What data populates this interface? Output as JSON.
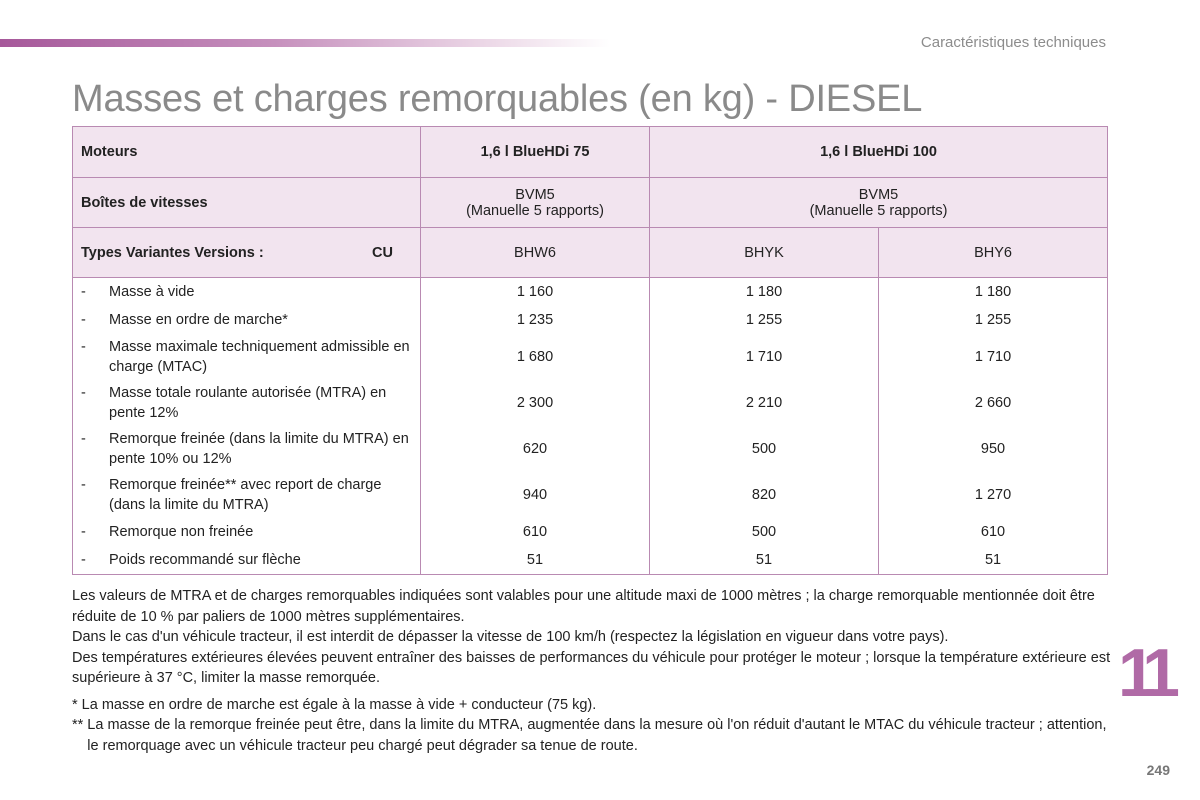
{
  "header": {
    "section": "Caractéristiques techniques"
  },
  "title": "Masses et charges remorquables (en kg) - DIESEL",
  "table": {
    "engines_label": "Moteurs",
    "engines": [
      "1,6 l BlueHDi 75",
      "1,6 l BlueHDi 100"
    ],
    "gearbox_label": "Boîtes de vitesses",
    "gearbox": [
      {
        "line1": "BVM5",
        "line2": "(Manuelle 5 rapports)"
      },
      {
        "line1": "BVM5",
        "line2": "(Manuelle 5 rapports)"
      }
    ],
    "types_label": "Types Variantes Versions :",
    "types_suffix": "CU",
    "types": [
      "BHW6",
      "BHYK",
      "BHY6"
    ],
    "rows": [
      {
        "dash": "-",
        "label": "Masse à vide",
        "values": [
          "1 160",
          "1 180",
          "1 180"
        ]
      },
      {
        "dash": "-",
        "label": "Masse en ordre de marche*",
        "values": [
          "1 235",
          "1 255",
          "1 255"
        ]
      },
      {
        "dash": "-",
        "label": "Masse maximale techniquement admissible en charge (MTAC)",
        "values": [
          "1 680",
          "1 710",
          "1 710"
        ]
      },
      {
        "dash": "-",
        "label": "Masse totale roulante autorisée (MTRA) en pente 12%",
        "values": [
          "2 300",
          "2 210",
          "2 660"
        ]
      },
      {
        "dash": "-",
        "label": "Remorque freinée (dans la limite du MTRA) en pente 10% ou 12%",
        "values": [
          "620",
          "500",
          "950"
        ]
      },
      {
        "dash": "-",
        "label": "Remorque freinée** avec report de charge (dans la limite du MTRA)",
        "values": [
          "940",
          "820",
          "1 270"
        ]
      },
      {
        "dash": "-",
        "label": "Remorque non freinée",
        "values": [
          "610",
          "500",
          "610"
        ]
      },
      {
        "dash": "-",
        "label": "Poids recommandé sur flèche",
        "values": [
          "51",
          "51",
          "51"
        ]
      }
    ]
  },
  "notes": [
    "Les valeurs de MTRA et de charges remorquables indiquées sont valables pour une altitude maxi de 1000 mètres ; la charge remorquable mentionnée doit être réduite de 10 % par paliers de 1000 mètres supplémentaires.",
    "Dans le cas d'un véhicule tracteur, il est interdit de dépasser la vitesse de 100 km/h (respectez la législation en vigueur dans votre pays).",
    "Des températures extérieures élevées peuvent entraîner des baisses de performances du véhicule pour protéger le moteur ; lorsque la température extérieure est supérieure à 37 °C, limiter la masse remorquée."
  ],
  "footnotes": [
    {
      "mark": "*",
      "text": "La masse en ordre de marche est égale à la masse à vide + conducteur (75 kg)."
    },
    {
      "mark": "**",
      "text": "La masse de la remorque freinée peut être, dans la limite du MTRA, augmentée dans la mesure où l'on réduit d'autant le MTAC du véhicule tracteur ; attention, le remorquage avec un véhicule tracteur peu chargé peut dégrader sa tenue de route."
    }
  ],
  "chapter": "11",
  "page_number": "249",
  "colors": {
    "accent": "#b06aa6",
    "header_fill": "#f2e4ef",
    "border": "#b98ab2"
  }
}
